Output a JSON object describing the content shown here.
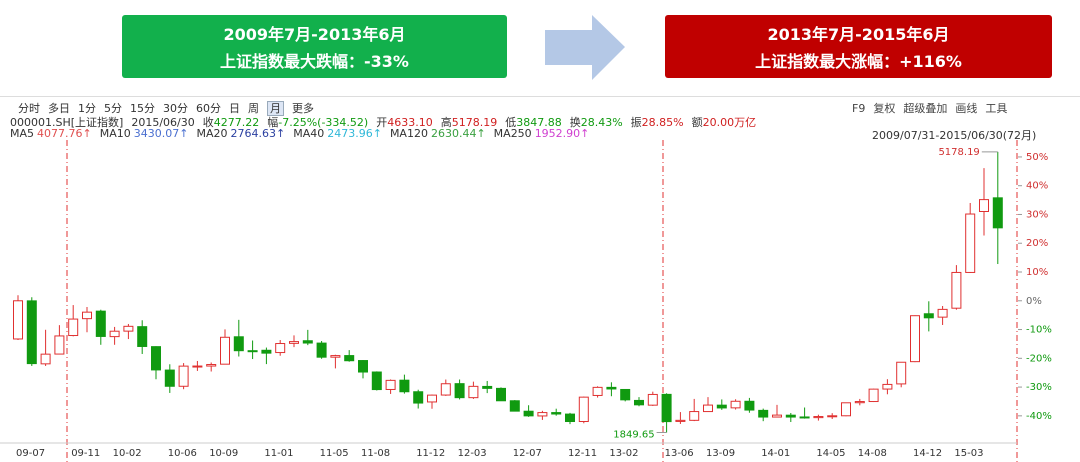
{
  "banners": [
    {
      "period": "2009年7月-2013年6月",
      "text": "上证指数最大跌幅：-33%"
    },
    {
      "period": "2013年7月-2015年6月",
      "text": "上证指数最大涨幅：+116%"
    }
  ],
  "toolbar": {
    "periods": [
      "分时",
      "多日",
      "1分",
      "5分",
      "15分",
      "30分",
      "60分",
      "日",
      "周",
      "月",
      "更多"
    ],
    "tools": [
      "F9",
      "复权",
      "超级叠加",
      "画线",
      "工具"
    ]
  },
  "info": {
    "symbol": "000001.SH[上证指数]",
    "date": "2015/06/30",
    "fields": [
      {
        "label": "收",
        "value": "4277.22"
      },
      {
        "label": "幅",
        "value": "-7.25%(-334.52)"
      },
      {
        "label": "开",
        "value": "4633.10"
      },
      {
        "label": "高",
        "value": "5178.19"
      },
      {
        "label": "低",
        "value": "3847.88"
      },
      {
        "label": "换",
        "value": "28.43%"
      },
      {
        "label": "振",
        "value": "28.85%"
      },
      {
        "label": "额",
        "value": "20.00万亿"
      }
    ]
  },
  "ma": [
    {
      "name": "MA5",
      "value": "4077.76↑",
      "color": "#e05050"
    },
    {
      "name": "MA10",
      "value": "3430.07↑",
      "color": "#4a6fd0"
    },
    {
      "name": "MA20",
      "value": "2764.63↑",
      "color": "#2a3fa0"
    },
    {
      "name": "MA40",
      "value": "2473.96↑",
      "color": "#2fb8d8"
    },
    {
      "name": "MA120",
      "value": "2630.44↑",
      "color": "#3aa040"
    },
    {
      "name": "MA250",
      "value": "1952.90↑",
      "color": "#d040d0"
    }
  ],
  "range": "2009/07/31-2015/06/30(72月)",
  "chart_data": {
    "type": "candlestick",
    "up_color": "#e03030",
    "down_color": "#109a10",
    "categories": [
      "09-07",
      null,
      null,
      null,
      "09-11",
      null,
      null,
      "10-02",
      null,
      null,
      null,
      "10-06",
      null,
      null,
      "10-09",
      null,
      null,
      null,
      "11-01",
      null,
      null,
      null,
      "11-05",
      null,
      null,
      "11-08",
      null,
      null,
      null,
      "11-12",
      null,
      null,
      "12-03",
      null,
      null,
      null,
      "12-07",
      null,
      null,
      null,
      "12-11",
      null,
      null,
      "13-02",
      null,
      null,
      null,
      "13-06",
      null,
      null,
      "13-09",
      null,
      null,
      null,
      "14-01",
      null,
      null,
      null,
      "14-05",
      null,
      null,
      "14-08",
      null,
      null,
      null,
      "14-12",
      null,
      null,
      "15-03",
      null,
      null,
      null
    ],
    "open": [
      2959,
      3411,
      2664,
      2780,
      3000,
      3200,
      3289,
      2987,
      3052,
      3105,
      2868,
      2590,
      2398,
      2638,
      2638,
      2660,
      2985,
      2820,
      2825,
      2798,
      2907,
      2938,
      2910,
      2743,
      2762,
      2703,
      2567,
      2360,
      2470,
      2333,
      2212,
      2294,
      2429,
      2263,
      2396,
      2373,
      2226,
      2102,
      2046,
      2086,
      2068,
      1980,
      2289,
      2385,
      2360,
      2230,
      2174,
      2302,
      1981,
      1994,
      2098,
      2174,
      2142,
      2220,
      2112,
      2033,
      2055,
      2034,
      2026,
      2040,
      2048,
      2203,
      2217,
      2365,
      2426,
      2690,
      3258,
      3218,
      3324,
      3748,
      4471,
      4633.1
    ],
    "high": [
      3478,
      3454,
      3068,
      3123,
      3361,
      3338,
      3306,
      3102,
      3137,
      3181,
      2873,
      2659,
      2673,
      2698,
      2680,
      3073,
      3186,
      2941,
      2857,
      2947,
      3002,
      3067,
      2935,
      2772,
      2827,
      2710,
      2575,
      2479,
      2536,
      2357,
      2300,
      2478,
      2478,
      2453,
      2461,
      2385,
      2234,
      2173,
      2107,
      2132,
      2083,
      2276,
      2398,
      2445,
      2360,
      2269,
      2334,
      2315,
      2092,
      2248,
      2270,
      2242,
      2244,
      2260,
      2133,
      2177,
      2081,
      2146,
      2061,
      2079,
      2205,
      2248,
      2369,
      2482,
      2683,
      3239,
      3406,
      3350,
      3835,
      4572,
      4986,
      5178.19
    ],
    "low": [
      2947,
      2639,
      2639,
      2776,
      2990,
      3039,
      2890,
      2890,
      2958,
      2781,
      2481,
      2319,
      2363,
      2580,
      2573,
      2661,
      2751,
      2721,
      2661,
      2760,
      2862,
      2886,
      2724,
      2610,
      2689,
      2492,
      2348,
      2307,
      2311,
      2134,
      2132,
      2284,
      2242,
      2248,
      2317,
      2223,
      2099,
      2035,
      1999,
      2049,
      1949,
      1959,
      2264,
      2280,
      2219,
      2161,
      2165,
      1849.65,
      1951,
      1985,
      2096,
      2118,
      2122,
      2084,
      1984,
      2030,
      1974,
      2014,
      1991,
      2010,
      2042,
      2172,
      2211,
      2303,
      2386,
      2684,
      3049,
      3125,
      3306,
      3742,
      4187,
      3847.88
    ],
    "close": [
      3412,
      2667,
      2779,
      2995,
      3195,
      3277,
      2989,
      3051,
      3109,
      2870,
      2592,
      2398,
      2637,
      2638,
      2656,
      2979,
      2820,
      2808,
      2791,
      2905,
      2928,
      2911,
      2743,
      2762,
      2701,
      2567,
      2359,
      2468,
      2333,
      2199,
      2293,
      2428,
      2263,
      2397,
      2373,
      2226,
      2103,
      2047,
      2086,
      2069,
      1980,
      2269,
      2385,
      2366,
      2237,
      2178,
      2301,
      1979,
      1994,
      2098,
      2175,
      2141,
      2220,
      2116,
      2033,
      2056,
      2033,
      2026,
      2039,
      2048,
      2202,
      2217,
      2364,
      2420,
      2683,
      3235,
      3210,
      3310,
      3748,
      4441,
      4612,
      4277.22
    ],
    "ylim": [
      1737,
      5319
    ],
    "yticks": [
      {
        "value": 5118.09,
        "label": "50%"
      },
      {
        "value": 4776.88,
        "label": "40%"
      },
      {
        "value": 4435.68,
        "label": "30%"
      },
      {
        "value": 4094.47,
        "label": "20%"
      },
      {
        "value": 3753.27,
        "label": "10%"
      },
      {
        "value": 3412.06,
        "label": "0%"
      },
      {
        "value": 3070.85,
        "label": "-10%"
      },
      {
        "value": 2729.65,
        "label": "-20%"
      },
      {
        "value": 2388.44,
        "label": "-30%"
      },
      {
        "value": 2047.24,
        "label": "-40%"
      }
    ]
  }
}
